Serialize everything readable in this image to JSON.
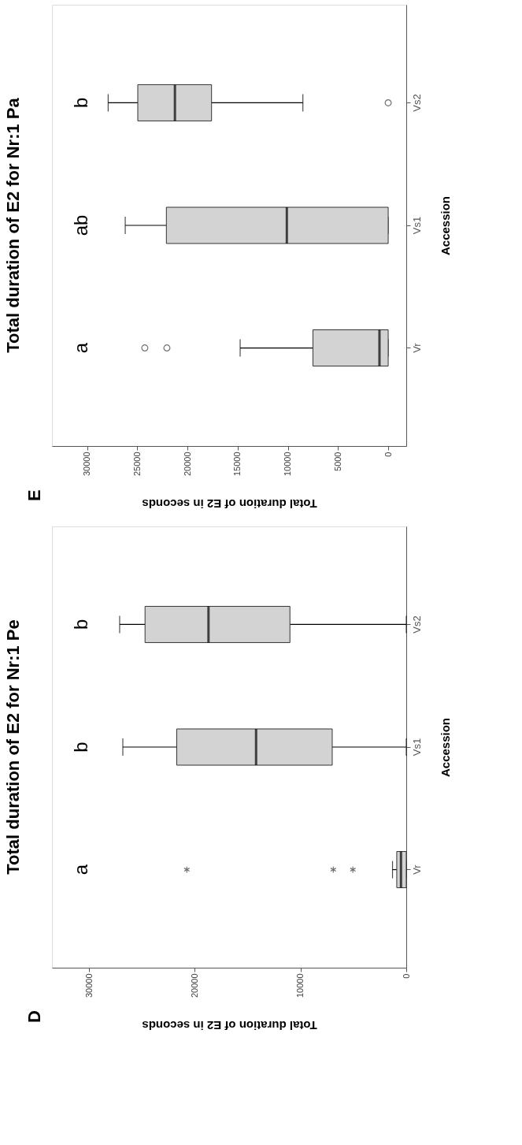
{
  "chart_data": [
    {
      "type": "box",
      "orientation": "horizontal",
      "title": "Total duration of E2 for Nr:1 Pe",
      "ylabel": "Accession",
      "xlabel": "Total duration of E2 in seconds",
      "categories": [
        "Vs2",
        "Vs1",
        "Vr"
      ],
      "color": "#d3d3d3",
      "marker": "star",
      "boxes": [
        {
          "low": 0,
          "q1": 11000,
          "median": 18700,
          "q3": 24700,
          "high": 27100
        },
        {
          "low": 0,
          "q1": 7000,
          "median": 14200,
          "q3": 21700,
          "high": 26800
        },
        {
          "low": 0,
          "q1": 0,
          "median": 500,
          "q3": 900,
          "high": 1300,
          "outliers": [
            20750,
            6900,
            5050
          ]
        }
      ],
      "xlim": [
        33500,
        0
      ],
      "xticks": [
        30000,
        20000,
        10000,
        0
      ],
      "grid": false,
      "annotations": [
        "b",
        "b",
        "a",
        "D"
      ]
    },
    {
      "type": "box",
      "orientation": "horizontal",
      "title": "Total duration of E2 for Nr:1 Pa",
      "ylabel": "Accession",
      "xlabel": "Total duration of E2 in seconds",
      "categories": [
        "Vs2",
        "Vs1",
        "Vr"
      ],
      "color": "#d3d3d3",
      "marker": "circle",
      "boxes": [
        {
          "low": 8500,
          "q1": 17600,
          "median": 21250,
          "q3": 24950,
          "high": 27900,
          "outliers": [
            0
          ]
        },
        {
          "low": 0,
          "q1": 0,
          "median": 10100,
          "q3": 22100,
          "high": 26200
        },
        {
          "low": 0,
          "q1": 0,
          "median": 870,
          "q3": 7500,
          "high": 14750,
          "outliers": [
            24250,
            22050
          ]
        }
      ],
      "xlim": [
        33500,
        -1800
      ],
      "xticks": [
        30000,
        25000,
        20000,
        15000,
        10000,
        5000,
        0
      ],
      "grid": false,
      "annotations": [
        "b",
        "ab",
        "a",
        "E"
      ]
    }
  ]
}
